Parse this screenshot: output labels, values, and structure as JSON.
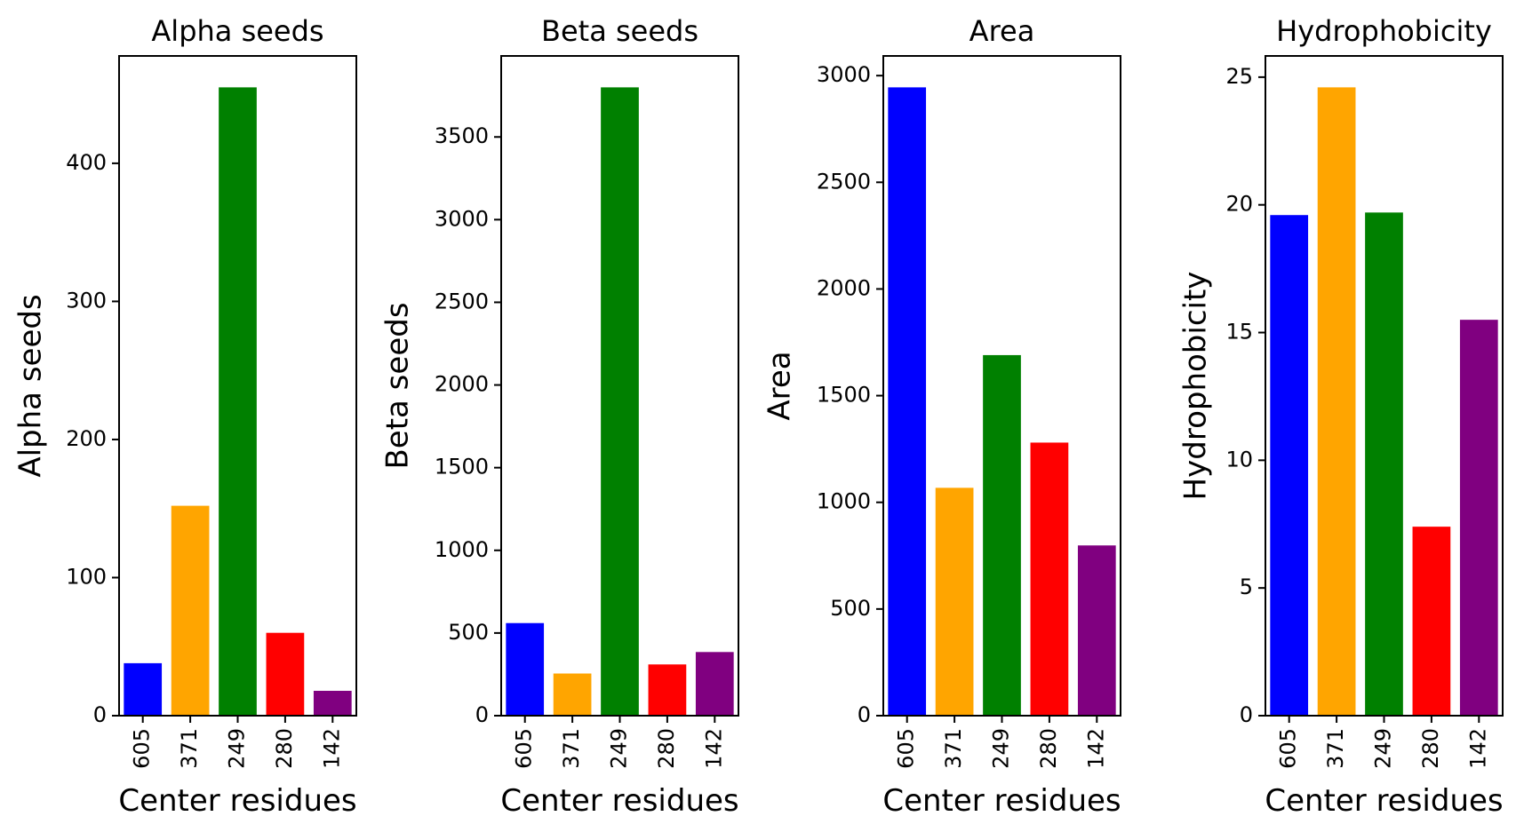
{
  "chart_data": [
    {
      "type": "bar",
      "title": "Alpha seeds",
      "xlabel": "Center residues",
      "ylabel": "Alpha seeds",
      "categories": [
        "605",
        "371",
        "249",
        "280",
        "142"
      ],
      "values": [
        38,
        152,
        455,
        60,
        18
      ],
      "colors": [
        "#0000ff",
        "#ffa500",
        "#008000",
        "#ff0000",
        "#800080"
      ],
      "ylim": [
        0,
        477.75
      ],
      "yticks": [
        0,
        100,
        200,
        300,
        400
      ],
      "ytick_labels": [
        "0",
        "100",
        "200",
        "300",
        "400"
      ],
      "grid": false
    },
    {
      "type": "bar",
      "title": "Beta seeds",
      "xlabel": "Center residues",
      "ylabel": "Beta seeds",
      "categories": [
        "605",
        "371",
        "249",
        "280",
        "142"
      ],
      "values": [
        560,
        255,
        3800,
        310,
        385
      ],
      "colors": [
        "#0000ff",
        "#ffa500",
        "#008000",
        "#ff0000",
        "#800080"
      ],
      "ylim": [
        0,
        3990
      ],
      "yticks": [
        0,
        500,
        1000,
        1500,
        2000,
        2500,
        3000,
        3500
      ],
      "ytick_labels": [
        "0",
        "500",
        "1000",
        "1500",
        "2000",
        "2500",
        "3000",
        "3500"
      ],
      "grid": false
    },
    {
      "type": "bar",
      "title": "Area",
      "xlabel": "Center residues",
      "ylabel": "Area",
      "categories": [
        "605",
        "371",
        "249",
        "280",
        "142"
      ],
      "values": [
        2945,
        1068,
        1690,
        1280,
        798
      ],
      "colors": [
        "#0000ff",
        "#ffa500",
        "#008000",
        "#ff0000",
        "#800080"
      ],
      "ylim": [
        0,
        3092.25
      ],
      "yticks": [
        0,
        500,
        1000,
        1500,
        2000,
        2500,
        3000
      ],
      "ytick_labels": [
        "0",
        "500",
        "1000",
        "1500",
        "2000",
        "2500",
        "3000"
      ],
      "grid": false
    },
    {
      "type": "bar",
      "title": "Hydrophobicity",
      "xlabel": "Center residues",
      "ylabel": "Hydrophobicity",
      "categories": [
        "605",
        "371",
        "249",
        "280",
        "142"
      ],
      "values": [
        19.6,
        24.6,
        19.7,
        7.4,
        15.5
      ],
      "colors": [
        "#0000ff",
        "#ffa500",
        "#008000",
        "#ff0000",
        "#800080"
      ],
      "ylim": [
        0,
        25.83
      ],
      "yticks": [
        0,
        5,
        10,
        15,
        20,
        25
      ],
      "ytick_labels": [
        "0",
        "5",
        "10",
        "15",
        "20",
        "25"
      ],
      "grid": false
    }
  ]
}
